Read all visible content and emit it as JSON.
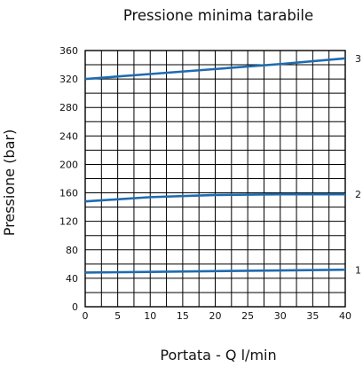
{
  "chart_data": {
    "type": "line",
    "title": "Pressione minima tarabile",
    "xlabel": "Portata - Q l/min",
    "ylabel": "Pressione (bar)",
    "xlim": [
      0,
      40
    ],
    "ylim": [
      0,
      360
    ],
    "x_ticks": [
      0,
      5,
      10,
      15,
      20,
      25,
      30,
      35,
      40
    ],
    "y_ticks": [
      0,
      40,
      80,
      120,
      160,
      200,
      240,
      280,
      320,
      360
    ],
    "grid": true,
    "line_color": "#1e6bb0",
    "series": [
      {
        "name": "1",
        "x": [
          0,
          10,
          20,
          30,
          40
        ],
        "y": [
          48,
          49,
          50,
          51,
          52
        ]
      },
      {
        "name": "2",
        "x": [
          0,
          10,
          20,
          30,
          40
        ],
        "y": [
          148,
          154,
          157,
          158,
          158
        ]
      },
      {
        "name": "3",
        "x": [
          0,
          10,
          20,
          30,
          40
        ],
        "y": [
          320,
          327,
          334,
          341,
          349
        ]
      }
    ]
  }
}
